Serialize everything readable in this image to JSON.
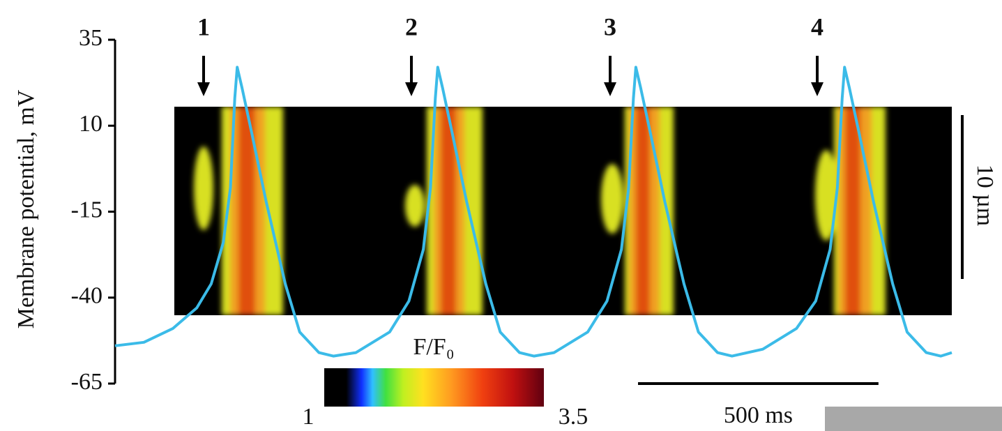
{
  "chart_data": {
    "type": "line",
    "y_label": "Membrane potential, mV",
    "ylim": [
      -65,
      35
    ],
    "yticks": [
      35,
      10,
      -15,
      -40,
      -65
    ],
    "xlim": [
      0,
      1740
    ],
    "x": [
      0,
      60,
      120,
      170,
      200,
      225,
      240,
      249,
      254,
      264,
      284,
      314,
      354,
      384,
      424,
      454,
      501,
      571,
      611,
      641,
      656,
      666,
      671,
      681,
      701,
      731,
      771,
      801,
      841,
      871,
      913,
      983,
      1023,
      1053,
      1068,
      1078,
      1083,
      1093,
      1113,
      1143,
      1183,
      1213,
      1253,
      1283,
      1347,
      1417,
      1457,
      1487,
      1502,
      1512,
      1517,
      1527,
      1547,
      1577,
      1617,
      1647,
      1687,
      1717,
      1740
    ],
    "series": [
      {
        "color": "#3bbbe8",
        "values": [
          -54,
          -53,
          -49,
          -43,
          -36,
          -24,
          -8,
          18,
          27,
          21,
          8,
          -12,
          -36,
          -50,
          -56,
          -57,
          -56,
          -50,
          -41,
          -26,
          -8,
          18,
          27,
          21,
          8,
          -12,
          -36,
          -50,
          -56,
          -57,
          -56,
          -50,
          -41,
          -26,
          -8,
          18,
          27,
          21,
          8,
          -12,
          -36,
          -50,
          -56,
          -57,
          -55,
          -49,
          -41,
          -26,
          -8,
          18,
          27,
          21,
          8,
          -12,
          -36,
          -50,
          -56,
          -57,
          -56
        ]
      }
    ],
    "annotations": [
      "1",
      "2",
      "3",
      "4"
    ],
    "colorbar": {
      "label": "F/F₀",
      "range": [
        1,
        3.5
      ]
    },
    "time_scale_bar": {
      "value": 500,
      "label": "500 ms"
    },
    "space_scale_bar": {
      "label": "10 µm"
    }
  }
}
